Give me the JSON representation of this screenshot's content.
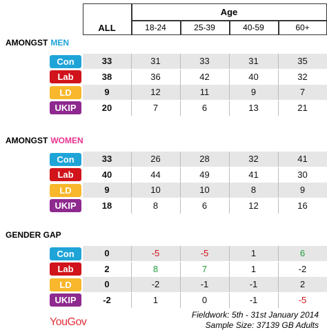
{
  "header": {
    "group": "Age",
    "columns": [
      "ALL",
      "18-24",
      "25-39",
      "40-59",
      "60+"
    ]
  },
  "sections": [
    {
      "heading": "AMONGST",
      "highlight": "MEN",
      "rows": [
        {
          "party": "Con",
          "values": [
            33,
            31,
            33,
            31,
            35
          ]
        },
        {
          "party": "Lab",
          "values": [
            38,
            36,
            42,
            40,
            32
          ]
        },
        {
          "party": "LD",
          "values": [
            9,
            12,
            11,
            9,
            7
          ]
        },
        {
          "party": "UKIP",
          "values": [
            20,
            7,
            6,
            13,
            21
          ]
        }
      ]
    },
    {
      "heading": "AMONGST",
      "highlight": "WOMEN",
      "rows": [
        {
          "party": "Con",
          "values": [
            33,
            26,
            28,
            32,
            41
          ]
        },
        {
          "party": "Lab",
          "values": [
            40,
            44,
            49,
            41,
            30
          ]
        },
        {
          "party": "LD",
          "values": [
            9,
            10,
            10,
            8,
            9
          ]
        },
        {
          "party": "UKIP",
          "values": [
            18,
            8,
            6,
            12,
            16
          ]
        }
      ]
    },
    {
      "heading": "GENDER GAP",
      "rows": [
        {
          "party": "Con",
          "values": [
            0,
            -5,
            -5,
            1,
            6
          ]
        },
        {
          "party": "Lab",
          "values": [
            2,
            8,
            7,
            1,
            -2
          ]
        },
        {
          "party": "LD",
          "values": [
            0,
            -2,
            -1,
            -1,
            2
          ]
        },
        {
          "party": "UKIP",
          "values": [
            -2,
            1,
            0,
            -1,
            -5
          ]
        }
      ]
    }
  ],
  "footer": {
    "fieldwork": "Fieldwork: 5th - 31st January 2014",
    "sample": "Sample Size: 37139 GB Adults",
    "logo": "YouGov"
  }
}
